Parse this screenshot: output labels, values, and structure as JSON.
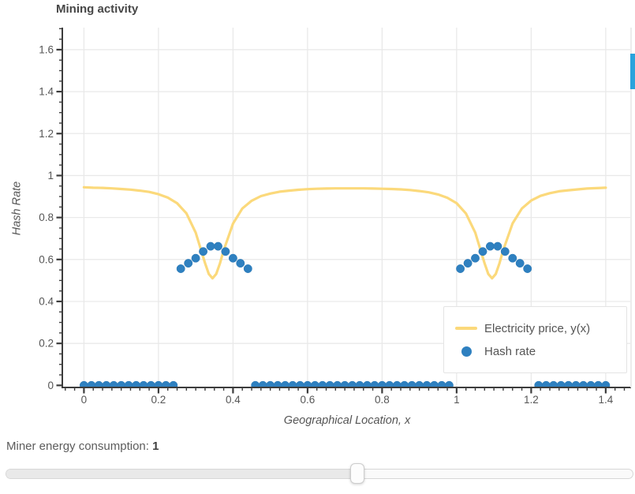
{
  "chart_data": {
    "type": "line+scatter",
    "title": "Mining activity",
    "xlabel": "Geographical Location, x",
    "ylabel": "Hash Rate",
    "xlim": [
      -0.058,
      1.468
    ],
    "ylim": [
      -0.01,
      1.705
    ],
    "grid": true,
    "legend_position": "bottom-right",
    "xticks": {
      "values": [
        0,
        0.2,
        0.4,
        0.6,
        0.8,
        1,
        1.2,
        1.4
      ],
      "labels": [
        "0",
        "0.2",
        "0.4",
        "0.6",
        "0.8",
        "1",
        "1.2",
        "1.4"
      ],
      "minor_step": 0.025,
      "minor_range": [
        -0.05,
        1.45
      ]
    },
    "yticks": {
      "values": [
        0,
        0.2,
        0.4,
        0.6,
        0.8,
        1,
        1.2,
        1.4,
        1.6
      ],
      "labels": [
        "0",
        "0.2",
        "0.4",
        "0.6",
        "0.8",
        "1",
        "1.2",
        "1.4",
        "1.6"
      ],
      "minor_step": 0.05,
      "minor_range": [
        0,
        1.7
      ]
    },
    "series": [
      {
        "name": "Electricity price, y(x)",
        "type": "line",
        "color": "#fbd97b",
        "x": [
          0.0,
          0.025,
          0.05,
          0.075,
          0.1,
          0.125,
          0.15,
          0.175,
          0.2,
          0.225,
          0.25,
          0.275,
          0.3,
          0.325,
          0.335,
          0.345,
          0.355,
          0.365,
          0.375,
          0.4,
          0.425,
          0.45,
          0.475,
          0.5,
          0.525,
          0.55,
          0.575,
          0.6,
          0.625,
          0.65,
          0.675,
          0.7,
          0.725,
          0.75,
          0.775,
          0.8,
          0.825,
          0.85,
          0.875,
          0.9,
          0.925,
          0.95,
          0.975,
          1.0,
          1.025,
          1.05,
          1.075,
          1.085,
          1.095,
          1.105,
          1.115,
          1.125,
          1.15,
          1.175,
          1.2,
          1.225,
          1.25,
          1.275,
          1.3,
          1.325,
          1.35,
          1.375,
          1.4
        ],
        "y": [
          0.944,
          0.942,
          0.941,
          0.939,
          0.936,
          0.933,
          0.928,
          0.922,
          0.911,
          0.895,
          0.868,
          0.82,
          0.728,
          0.582,
          0.531,
          0.51,
          0.531,
          0.582,
          0.644,
          0.771,
          0.843,
          0.88,
          0.902,
          0.914,
          0.923,
          0.928,
          0.932,
          0.935,
          0.937,
          0.938,
          0.939,
          0.939,
          0.939,
          0.939,
          0.938,
          0.937,
          0.936,
          0.934,
          0.931,
          0.926,
          0.92,
          0.91,
          0.894,
          0.868,
          0.819,
          0.728,
          0.582,
          0.531,
          0.51,
          0.531,
          0.582,
          0.644,
          0.772,
          0.843,
          0.881,
          0.903,
          0.916,
          0.925,
          0.93,
          0.934,
          0.938,
          0.94,
          0.942
        ]
      },
      {
        "name": "Hash rate",
        "type": "scatter",
        "color": "#2e80c0",
        "x": [
          0,
          0.02,
          0.04,
          0.06,
          0.08,
          0.1,
          0.12,
          0.14,
          0.16,
          0.18,
          0.2,
          0.22,
          0.24,
          0.26,
          0.28,
          0.3,
          0.32,
          0.34,
          0.36,
          0.38,
          0.4,
          0.42,
          0.44,
          0.46,
          0.48,
          0.5,
          0.52,
          0.54,
          0.56,
          0.58,
          0.6,
          0.62,
          0.64,
          0.66,
          0.68,
          0.7,
          0.72,
          0.74,
          0.76,
          0.78,
          0.8,
          0.82,
          0.84,
          0.86,
          0.88,
          0.9,
          0.92,
          0.94,
          0.96,
          0.98,
          1.01,
          1.03,
          1.05,
          1.07,
          1.09,
          1.11,
          1.13,
          1.15,
          1.17,
          1.19,
          1.22,
          1.24,
          1.26,
          1.28,
          1.3,
          1.32,
          1.34,
          1.36,
          1.38,
          1.4
        ],
        "y": [
          0,
          0,
          0,
          0,
          0,
          0,
          0,
          0,
          0,
          0,
          0,
          0,
          0,
          0.556,
          0.582,
          0.606,
          0.638,
          0.663,
          0.663,
          0.638,
          0.606,
          0.582,
          0.556,
          0,
          0,
          0,
          0,
          0,
          0,
          0,
          0,
          0,
          0,
          0,
          0,
          0,
          0,
          0,
          0,
          0,
          0,
          0,
          0,
          0,
          0,
          0,
          0,
          0,
          0,
          0,
          0.556,
          0.582,
          0.606,
          0.638,
          0.663,
          0.663,
          0.638,
          0.606,
          0.582,
          0.556,
          0,
          0,
          0,
          0,
          0,
          0,
          0,
          0,
          0,
          0
        ]
      }
    ]
  },
  "colors": {
    "grid": "#e9e9e9",
    "axis": "#3c3c3c",
    "tick_label": "#565656",
    "scrollbar": "#29a3dc"
  },
  "controls": {
    "label": "Miner energy consumption: ",
    "value": "1",
    "fraction": 0.56
  }
}
